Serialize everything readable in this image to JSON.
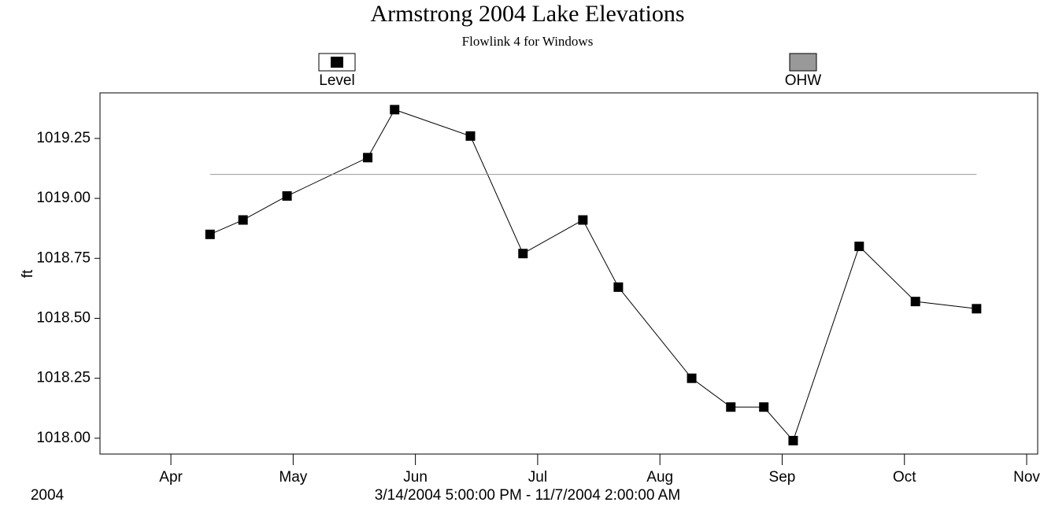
{
  "chart_data": {
    "type": "line",
    "title": "Armstrong 2004 Lake Elevations",
    "subtitle": "Flowlink 4 for Windows",
    "y_label": "ft",
    "x_label": "3/14/2004 5:00:00 PM - 11/7/2004 2:00:00 AM",
    "x_year_label": "2004",
    "series": [
      {
        "name": "Level",
        "color": "#000000",
        "marker": "square",
        "x": [
          4.32,
          4.59,
          4.95,
          5.61,
          5.83,
          6.45,
          6.88,
          7.37,
          7.66,
          8.26,
          8.58,
          8.85,
          9.09,
          9.63,
          10.09,
          10.59
        ],
        "values": [
          1018.85,
          1018.91,
          1019.01,
          1019.17,
          1019.37,
          1019.26,
          1018.77,
          1018.91,
          1018.63,
          1018.25,
          1018.13,
          1018.13,
          1017.99,
          1018.8,
          1018.57,
          1018.54
        ]
      },
      {
        "name": "OHW",
        "color": "#999999",
        "x": [
          4.32,
          10.59
        ],
        "values": [
          1019.1,
          1019.1
        ]
      }
    ],
    "xlim": [
      3.42,
      11.09
    ],
    "xticks": [
      {
        "value": 4,
        "label": "Apr"
      },
      {
        "value": 5,
        "label": "May"
      },
      {
        "value": 6,
        "label": "Jun"
      },
      {
        "value": 7,
        "label": "Jul"
      },
      {
        "value": 8,
        "label": "Aug"
      },
      {
        "value": 9,
        "label": "Sep"
      },
      {
        "value": 10,
        "label": "Oct"
      },
      {
        "value": 11,
        "label": "Nov"
      }
    ],
    "ylim": [
      1017.934,
      1019.44
    ],
    "yticks": [
      {
        "value": 1018,
        "label": "1018.00"
      },
      {
        "value": 1018.25,
        "label": "1018.25"
      },
      {
        "value": 1018.5,
        "label": "1018.50"
      },
      {
        "value": 1018.75,
        "label": "1018.75"
      },
      {
        "value": 1019,
        "label": "1019.00"
      },
      {
        "value": 1019.25,
        "label": "1019.25"
      }
    ],
    "grid": false
  }
}
